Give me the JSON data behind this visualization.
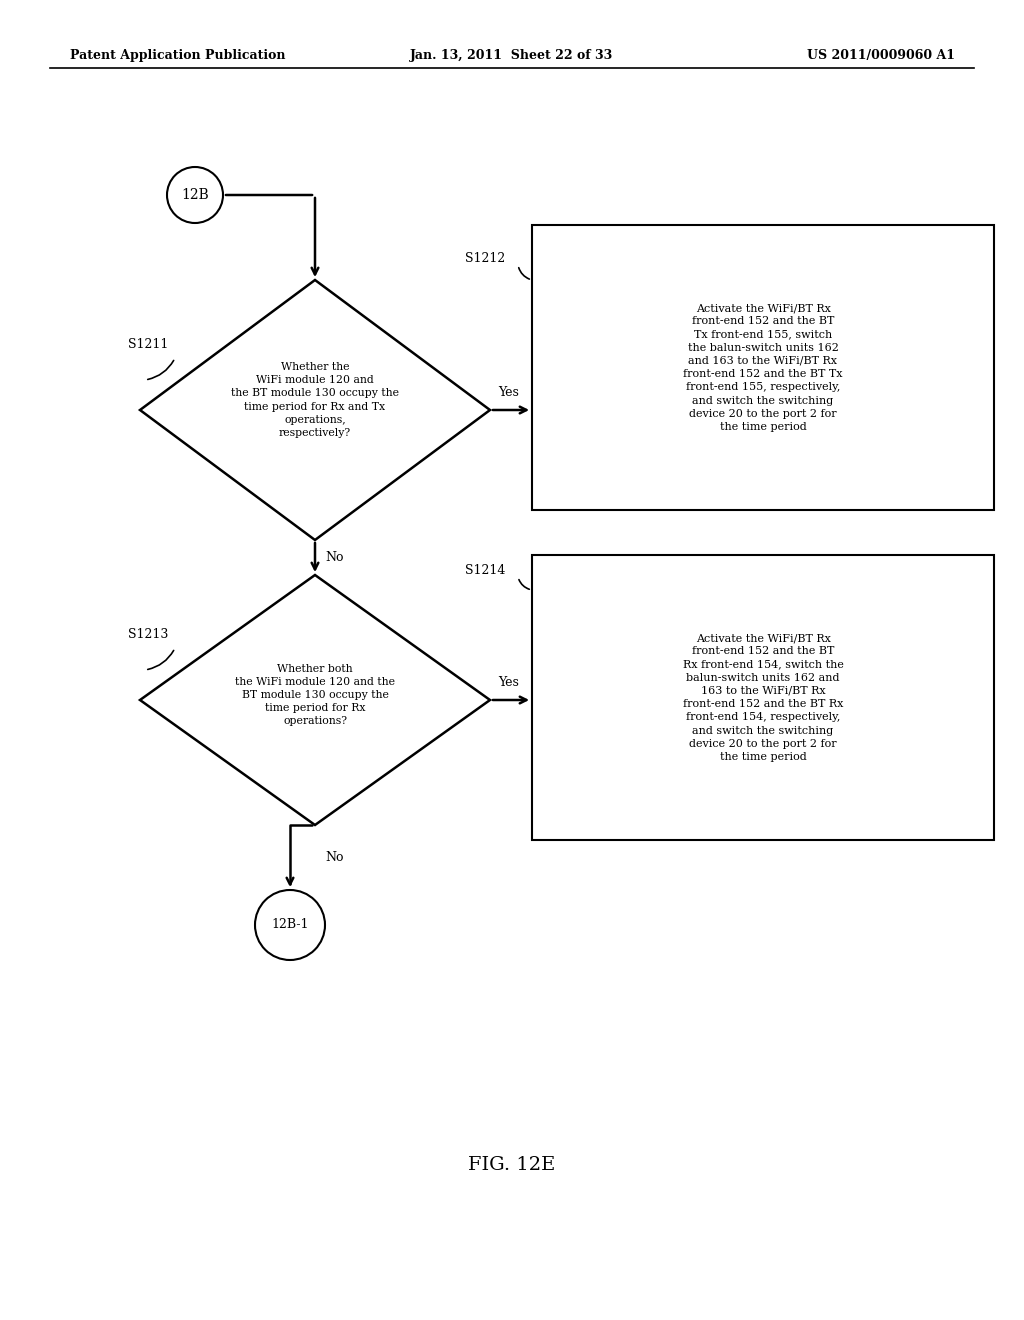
{
  "header_left": "Patent Application Publication",
  "header_mid": "Jan. 13, 2011  Sheet 22 of 33",
  "header_right": "US 2011/0009060 A1",
  "fig_label": "FIG. 12E",
  "background_color": "#ffffff",
  "connector_top": "12B",
  "connector_bottom": "12B-1",
  "diamond1_label": "S1211",
  "diamond1_text": "Whether the\nWiFi module 120 and\nthe BT module 130 occupy the\ntime period for Rx and Tx\noperations,\nrespectively?",
  "diamond1_yes": "Yes",
  "diamond1_no": "No",
  "box1_label": "S1212",
  "box1_text": "Activate the WiFi/BT Rx\nfront-end 152 and the BT\nTx front-end 155, switch\nthe balun-switch units 162\nand 163 to the WiFi/BT Rx\nfront-end 152 and the BT Tx\nfront-end 155, respectively,\nand switch the switching\ndevice 20 to the port 2 for\nthe time period",
  "diamond2_label": "S1213",
  "diamond2_text": "Whether both\nthe WiFi module 120 and the\nBT module 130 occupy the\ntime period for Rx\noperations?",
  "diamond2_yes": "Yes",
  "diamond2_no": "No",
  "box2_label": "S1214",
  "box2_text": "Activate the WiFi/BT Rx\nfront-end 152 and the BT\nRx front-end 154, switch the\nbalun-switch units 162 and\n163 to the WiFi/BT Rx\nfront-end 152 and the BT Rx\nfront-end 154, respectively,\nand switch the switching\ndevice 20 to the port 2 for\nthe time period"
}
